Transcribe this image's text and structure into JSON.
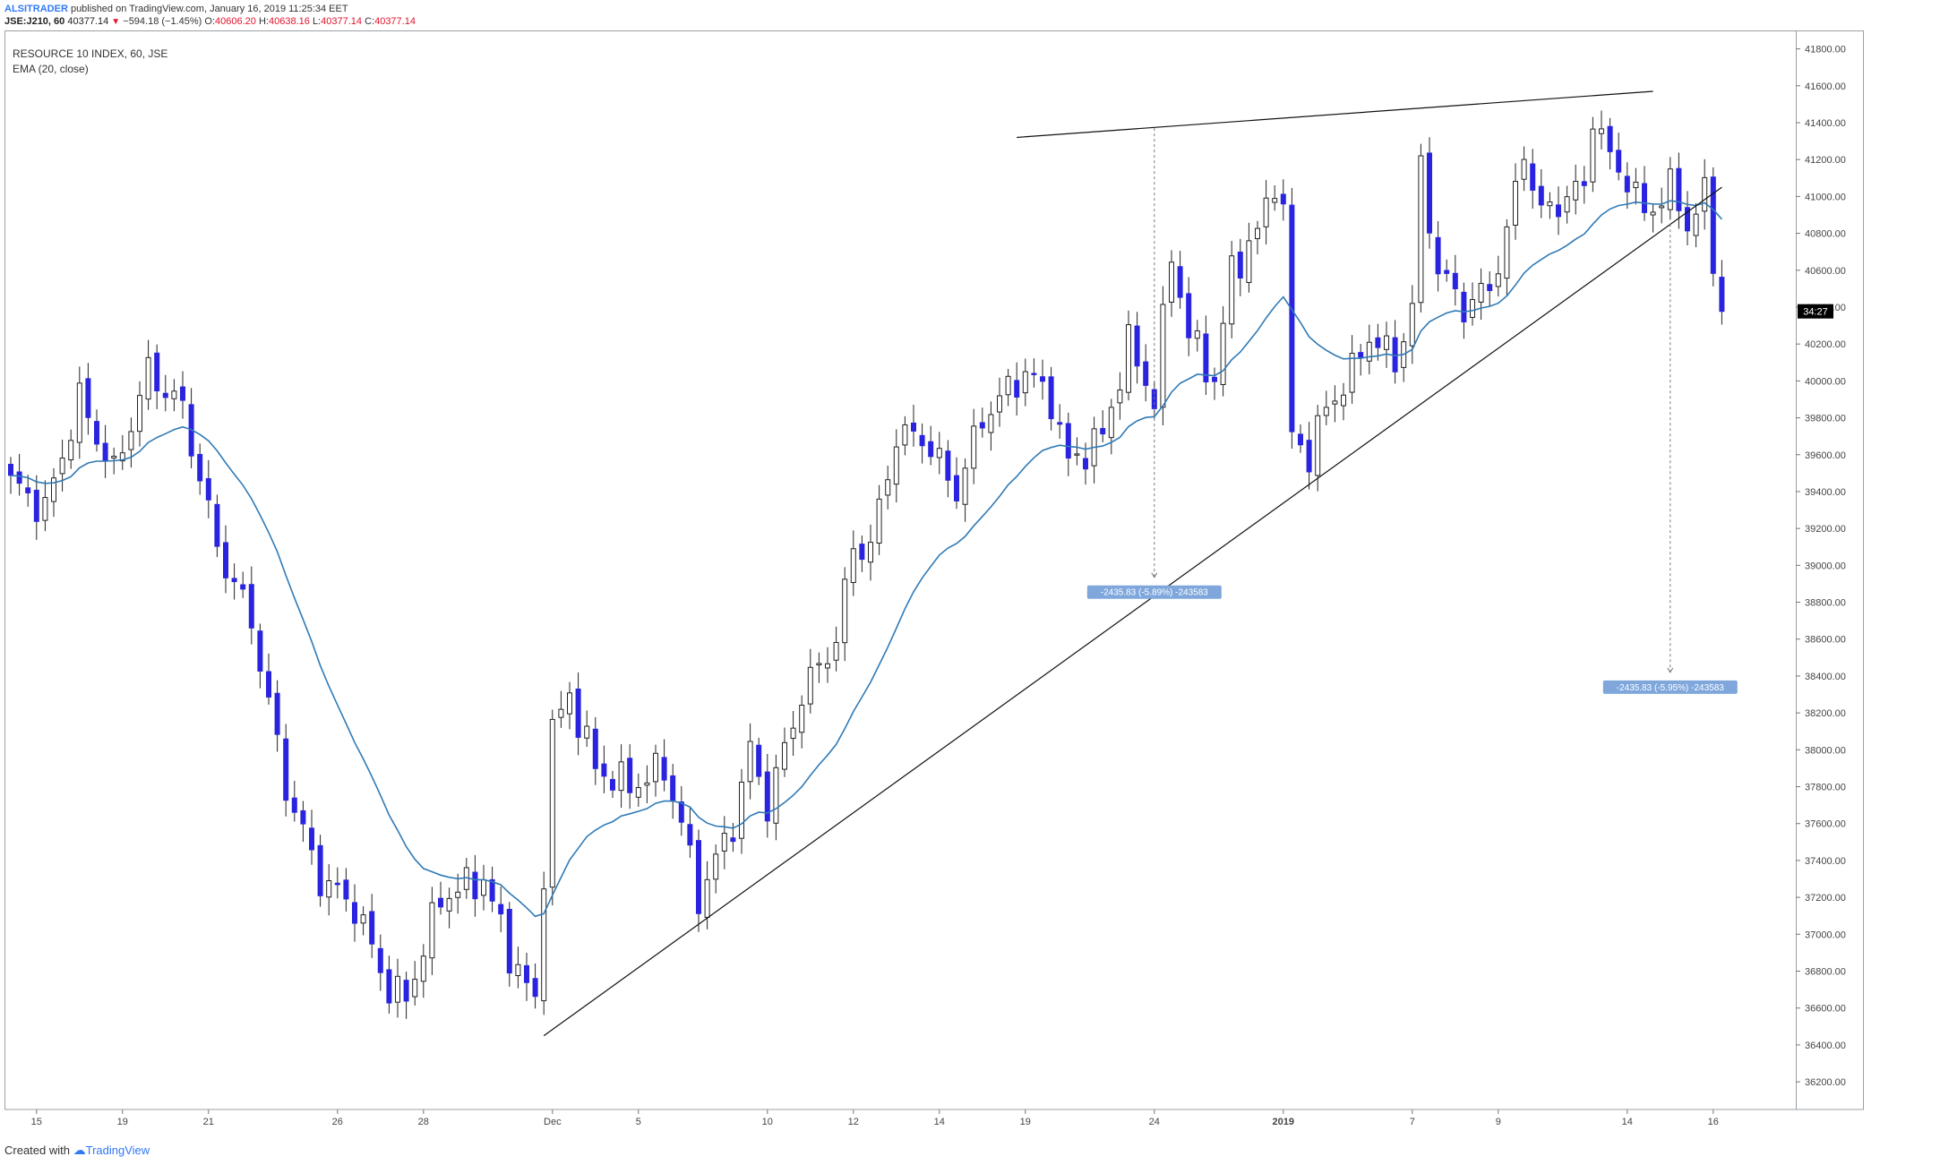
{
  "header": {
    "author": "ALSITRADER",
    "published_text": " published on TradingView.com, January 16, 2019 11:25:34 EET",
    "symbol": "JSE:J210, 60",
    "last_price": "40377.14",
    "change": "−594.18 (−1.45%)",
    "open_label": "O:",
    "open": "40606.20",
    "high_label": "H:",
    "high": "40638.16",
    "low_label": "L:",
    "low": "40377.14",
    "close_label": "C:",
    "close": "40377.14"
  },
  "legend": {
    "title": "RESOURCE 10 INDEX, 60, JSE",
    "indicator": "EMA (20, close)"
  },
  "footer": {
    "created_with": "Created with",
    "brand": "TradingView"
  },
  "colors": {
    "up_candle": "#ffffff",
    "down_candle": "#2a24e0",
    "wick": "#222222",
    "ema": "#2f7ab6",
    "trendline": "#111111",
    "measure_label_bg": "#7fa7dc",
    "price_tag_bg": "#000000",
    "axis_text": "#444444"
  },
  "chart_data": {
    "type": "candlestick",
    "title": "RESOURCE 10 INDEX, 60, JSE",
    "ylim": [
      36050,
      41900
    ],
    "y_ticks": [
      36200,
      36400,
      36600,
      36800,
      37000,
      37200,
      37400,
      37600,
      37800,
      38000,
      38200,
      38400,
      38600,
      38800,
      39000,
      39200,
      39400,
      39600,
      39800,
      40000,
      40200,
      40400,
      40600,
      40800,
      41000,
      41200,
      41400,
      41600,
      41800
    ],
    "y_tick_labels": [
      "36200.00",
      "36400.00",
      "36600.00",
      "36800.00",
      "37000.00",
      "37200.00",
      "37400.00",
      "37600.00",
      "37800.00",
      "38000.00",
      "38200.00",
      "38400.00",
      "38600.00",
      "38800.00",
      "39000.00",
      "39200.00",
      "39400.00",
      "39600.00",
      "39800.00",
      "40000.00",
      "40200.00",
      "40400.00",
      "40600.00",
      "40800.00",
      "41000.00",
      "41200.00",
      "41400.00",
      "41600.00",
      "41800.00"
    ],
    "x_bar_count": 200,
    "x_ticks": [
      {
        "bar": 3,
        "label": "15"
      },
      {
        "bar": 13,
        "label": "19"
      },
      {
        "bar": 23,
        "label": "21"
      },
      {
        "bar": 38,
        "label": "26"
      },
      {
        "bar": 48,
        "label": "28"
      },
      {
        "bar": 63,
        "label": "Dec"
      },
      {
        "bar": 73,
        "label": "5"
      },
      {
        "bar": 88,
        "label": "10"
      },
      {
        "bar": 98,
        "label": "12"
      },
      {
        "bar": 108,
        "label": "14"
      },
      {
        "bar": 118,
        "label": "19"
      },
      {
        "bar": 133,
        "label": "24"
      },
      {
        "bar": 148,
        "label": "2019"
      },
      {
        "bar": 163,
        "label": "7"
      },
      {
        "bar": 173,
        "label": "9"
      },
      {
        "bar": 188,
        "label": "14"
      },
      {
        "bar": 198,
        "label": "16"
      }
    ],
    "anchors": [
      [
        0,
        39450
      ],
      [
        4,
        39300
      ],
      [
        8,
        39900
      ],
      [
        12,
        39500
      ],
      [
        16,
        40050
      ],
      [
        20,
        39850
      ],
      [
        24,
        39100
      ],
      [
        28,
        38700
      ],
      [
        32,
        37800
      ],
      [
        36,
        37300
      ],
      [
        40,
        37150
      ],
      [
        44,
        36700
      ],
      [
        46,
        36650
      ],
      [
        50,
        37200
      ],
      [
        55,
        37300
      ],
      [
        58,
        36900
      ],
      [
        61,
        36620
      ],
      [
        63,
        38100
      ],
      [
        65,
        38300
      ],
      [
        68,
        37900
      ],
      [
        72,
        37800
      ],
      [
        76,
        37900
      ],
      [
        78,
        37600
      ],
      [
        80,
        37200
      ],
      [
        84,
        37600
      ],
      [
        86,
        38000
      ],
      [
        88,
        37700
      ],
      [
        92,
        38300
      ],
      [
        96,
        38600
      ],
      [
        98,
        39100
      ],
      [
        100,
        39100
      ],
      [
        103,
        39700
      ],
      [
        106,
        39700
      ],
      [
        110,
        39400
      ],
      [
        113,
        39800
      ],
      [
        118,
        40050
      ],
      [
        121,
        39900
      ],
      [
        123,
        39550
      ],
      [
        127,
        39700
      ],
      [
        130,
        40200
      ],
      [
        133,
        39900
      ],
      [
        135,
        40700
      ],
      [
        137,
        40250
      ],
      [
        140,
        40000
      ],
      [
        142,
        40600
      ],
      [
        145,
        40800
      ],
      [
        147,
        41100
      ],
      [
        148,
        40900
      ],
      [
        149,
        39700
      ],
      [
        151,
        39600
      ],
      [
        153,
        39850
      ],
      [
        156,
        40050
      ],
      [
        158,
        40250
      ],
      [
        161,
        40100
      ],
      [
        163,
        40400
      ],
      [
        164,
        41150
      ],
      [
        166,
        40600
      ],
      [
        169,
        40400
      ],
      [
        172,
        40500
      ],
      [
        174,
        40800
      ],
      [
        176,
        41250
      ],
      [
        178,
        40900
      ],
      [
        181,
        41000
      ],
      [
        183,
        41050
      ],
      [
        184,
        41450
      ],
      [
        186,
        41200
      ],
      [
        188,
        41100
      ],
      [
        190,
        40900
      ],
      [
        193,
        41050
      ],
      [
        195,
        40850
      ],
      [
        197,
        41000
      ],
      [
        198,
        40650
      ],
      [
        199,
        40377
      ]
    ],
    "ema": {
      "name": "EMA (20, close)",
      "period": 20
    },
    "trendlines": [
      {
        "from": [
          62,
          36450
        ],
        "to": [
          199,
          41050
        ]
      },
      {
        "from": [
          117,
          41320
        ],
        "to": [
          191,
          41570
        ]
      }
    ],
    "measures": [
      {
        "bar": 133,
        "from": 41370,
        "to": 38935,
        "label": "-2435.83 (-5.89%) -243583"
      },
      {
        "bar": 193,
        "from": 40850,
        "to": 38420,
        "label": "-2435.83 (-5.95%) -243583"
      }
    ],
    "price_tag": {
      "value": 40377.14,
      "label": "34:27"
    }
  }
}
